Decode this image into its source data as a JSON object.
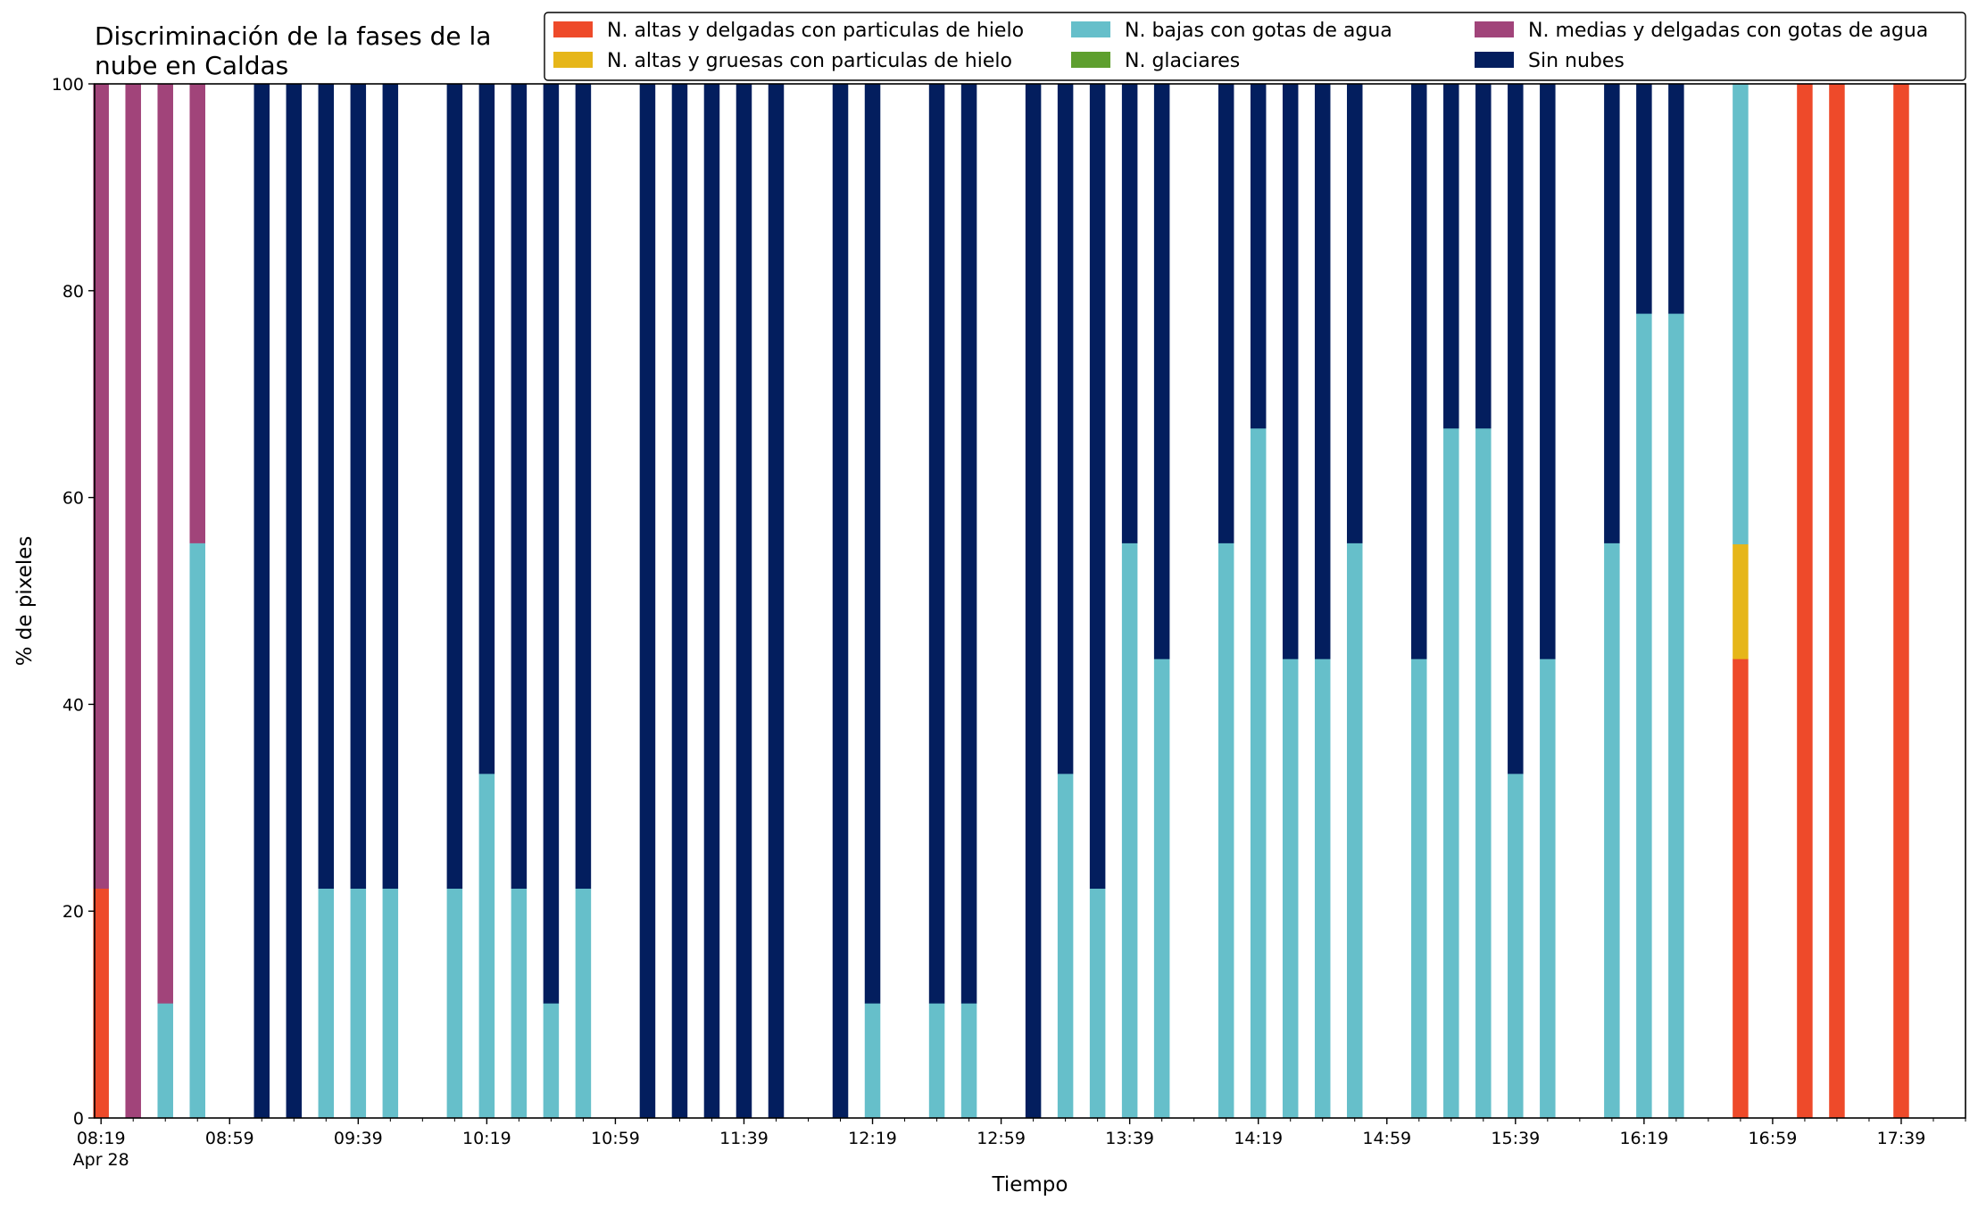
{
  "chart_data": {
    "type": "bar",
    "stacked": true,
    "title": "Discriminación de la fases de la\nnube en Caldas",
    "xlabel": "Tiempo",
    "ylabel": "% de pixeles",
    "ylim": [
      0,
      100
    ],
    "yticks": [
      0,
      20,
      40,
      60,
      80,
      100
    ],
    "x_range_min": [
      "08:17",
      "17:59"
    ],
    "xtick_labels": [
      "08:19",
      "08:59",
      "09:39",
      "10:19",
      "10:59",
      "11:39",
      "12:19",
      "12:59",
      "13:39",
      "14:19",
      "14:59",
      "15:39",
      "16:19",
      "16:59",
      "17:39"
    ],
    "xtick_sublabel": "Apr 28",
    "grid": false,
    "legend_placement": "top-right",
    "legend_ncol": 3,
    "series": [
      {
        "name": "N. altas y delgadas con particulas de hielo",
        "color": "#ee4a2a"
      },
      {
        "name": "N. altas y gruesas con particulas de hielo",
        "color": "#e6b619"
      },
      {
        "name": "N. bajas con gotas de agua",
        "color": "#66bfca"
      },
      {
        "name": "N. glaciares",
        "color": "#5e9f2e"
      },
      {
        "name": "N. medias y delgadas con gotas de agua",
        "color": "#a1447a"
      },
      {
        "name": "Sin nubes",
        "color": "#031e5e"
      }
    ],
    "bars": [
      {
        "time": "08:19",
        "values": [
          22.2,
          0,
          0,
          0,
          77.8,
          0
        ]
      },
      {
        "time": "08:29",
        "values": [
          0,
          0,
          0,
          0,
          100,
          0
        ]
      },
      {
        "time": "08:39",
        "values": [
          0,
          0,
          11.1,
          0,
          88.9,
          0
        ]
      },
      {
        "time": "08:49",
        "values": [
          0,
          0,
          55.6,
          0,
          44.4,
          0
        ]
      },
      {
        "time": "09:09",
        "values": [
          0,
          0,
          0,
          0,
          0,
          100
        ]
      },
      {
        "time": "09:19",
        "values": [
          0,
          0,
          0,
          0,
          0,
          100
        ]
      },
      {
        "time": "09:29",
        "values": [
          0,
          0,
          22.2,
          0,
          0,
          77.8
        ]
      },
      {
        "time": "09:39",
        "values": [
          0,
          0,
          22.2,
          0,
          0,
          77.8
        ]
      },
      {
        "time": "09:49",
        "values": [
          0,
          0,
          22.2,
          0,
          0,
          77.8
        ]
      },
      {
        "time": "10:09",
        "values": [
          0,
          0,
          22.2,
          0,
          0,
          77.8
        ]
      },
      {
        "time": "10:19",
        "values": [
          0,
          0,
          33.3,
          0,
          0,
          66.7
        ]
      },
      {
        "time": "10:29",
        "values": [
          0,
          0,
          22.2,
          0,
          0,
          77.8
        ]
      },
      {
        "time": "10:39",
        "values": [
          0,
          0,
          11.1,
          0,
          0,
          88.9
        ]
      },
      {
        "time": "10:49",
        "values": [
          0,
          0,
          22.2,
          0,
          0,
          77.8
        ]
      },
      {
        "time": "11:09",
        "values": [
          0,
          0,
          0,
          0,
          0,
          100
        ]
      },
      {
        "time": "11:19",
        "values": [
          0,
          0,
          0,
          0,
          0,
          100
        ]
      },
      {
        "time": "11:29",
        "values": [
          0,
          0,
          0,
          0,
          0,
          100
        ]
      },
      {
        "time": "11:39",
        "values": [
          0,
          0,
          0,
          0,
          0,
          100
        ]
      },
      {
        "time": "11:49",
        "values": [
          0,
          0,
          0,
          0,
          0,
          100
        ]
      },
      {
        "time": "12:09",
        "values": [
          0,
          0,
          0,
          0,
          0,
          100
        ]
      },
      {
        "time": "12:19",
        "values": [
          0,
          0,
          11.1,
          0,
          0,
          88.9
        ]
      },
      {
        "time": "12:39",
        "values": [
          0,
          0,
          11.1,
          0,
          0,
          88.9
        ]
      },
      {
        "time": "12:49",
        "values": [
          0,
          0,
          11.1,
          0,
          0,
          88.9
        ]
      },
      {
        "time": "13:09",
        "values": [
          0,
          0,
          0,
          0,
          0,
          100
        ]
      },
      {
        "time": "13:19",
        "values": [
          0,
          0,
          33.3,
          0,
          0,
          66.7
        ]
      },
      {
        "time": "13:29",
        "values": [
          0,
          0,
          22.2,
          0,
          0,
          77.8
        ]
      },
      {
        "time": "13:39",
        "values": [
          0,
          0,
          55.6,
          0,
          0,
          44.4
        ]
      },
      {
        "time": "13:49",
        "values": [
          0,
          0,
          44.4,
          0,
          0,
          55.6
        ]
      },
      {
        "time": "14:09",
        "values": [
          0,
          0,
          55.6,
          0,
          0,
          44.4
        ]
      },
      {
        "time": "14:19",
        "values": [
          0,
          0,
          66.7,
          0,
          0,
          33.3
        ]
      },
      {
        "time": "14:29",
        "values": [
          0,
          0,
          44.4,
          0,
          0,
          55.6
        ]
      },
      {
        "time": "14:39",
        "values": [
          0,
          0,
          44.4,
          0,
          0,
          55.6
        ]
      },
      {
        "time": "14:49",
        "values": [
          0,
          0,
          55.6,
          0,
          0,
          44.4
        ]
      },
      {
        "time": "15:09",
        "values": [
          0,
          0,
          44.4,
          0,
          0,
          55.6
        ]
      },
      {
        "time": "15:19",
        "values": [
          0,
          0,
          66.7,
          0,
          0,
          33.3
        ]
      },
      {
        "time": "15:29",
        "values": [
          0,
          0,
          66.7,
          0,
          0,
          33.3
        ]
      },
      {
        "time": "15:39",
        "values": [
          0,
          0,
          33.3,
          0,
          0,
          66.7
        ]
      },
      {
        "time": "15:49",
        "values": [
          0,
          0,
          44.4,
          0,
          0,
          55.6
        ]
      },
      {
        "time": "16:09",
        "values": [
          0,
          0,
          55.6,
          0,
          0,
          44.4
        ]
      },
      {
        "time": "16:19",
        "values": [
          0,
          0,
          77.8,
          0,
          0,
          22.2
        ]
      },
      {
        "time": "16:29",
        "values": [
          0,
          0,
          77.8,
          0,
          0,
          22.2
        ]
      },
      {
        "time": "16:49",
        "values": [
          44.4,
          11.1,
          44.5,
          0,
          0,
          0
        ]
      },
      {
        "time": "17:09",
        "values": [
          100,
          0,
          0,
          0,
          0,
          0
        ]
      },
      {
        "time": "17:19",
        "values": [
          100,
          0,
          0,
          0,
          0,
          0
        ]
      },
      {
        "time": "17:39",
        "values": [
          100,
          0,
          0,
          0,
          0,
          0
        ]
      }
    ]
  }
}
